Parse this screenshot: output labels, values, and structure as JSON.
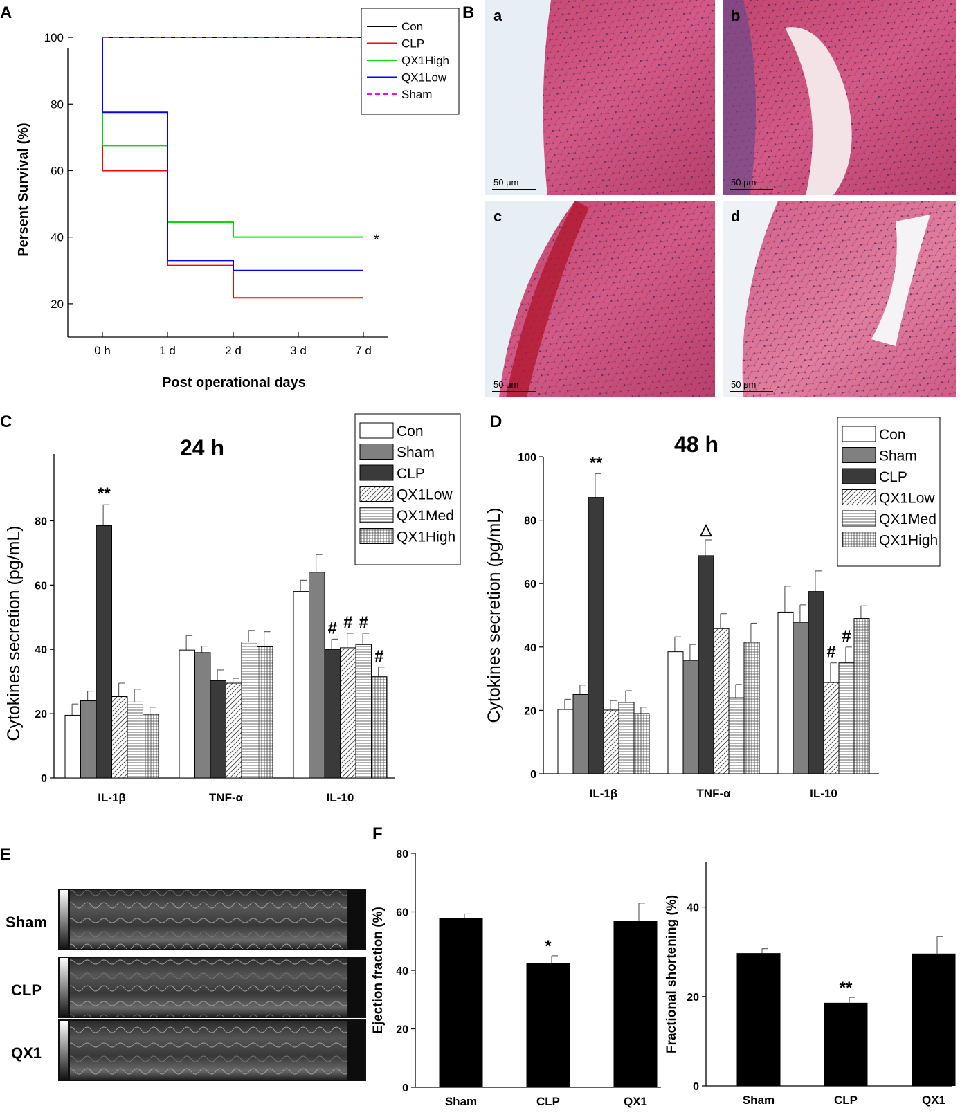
{
  "panel_labels": {
    "A": "A",
    "B": "B",
    "C": "C",
    "D": "D",
    "E": "E",
    "F": "F"
  },
  "chart_data": [
    {
      "id": "A",
      "type": "line",
      "step": true,
      "xlabel": "Post operational days",
      "ylabel": "Persent Survival (%)",
      "categories": [
        "0 h",
        "1 d",
        "2 d",
        "3 d",
        "7 d"
      ],
      "yticks": [
        20,
        40,
        60,
        80,
        100
      ],
      "ylim": [
        10,
        105
      ],
      "legend": {
        "position": "top-right"
      },
      "series": [
        {
          "name": "Con",
          "color": "#000000",
          "dash": false,
          "values": [
            100,
            100,
            100,
            100,
            100
          ]
        },
        {
          "name": "CLP",
          "color": "#ff0000",
          "dash": false,
          "values": [
            60,
            31.5,
            21.8,
            21.8,
            21.8
          ]
        },
        {
          "name": "QX1High",
          "color": "#00dd00",
          "dash": false,
          "values": [
            67.5,
            44.5,
            40,
            40,
            40
          ]
        },
        {
          "name": "QX1Low",
          "color": "#0000ff",
          "dash": false,
          "values": [
            77.5,
            33,
            30,
            30,
            30
          ]
        },
        {
          "name": "Sham",
          "color": "#ff00ff",
          "dash": true,
          "values": [
            100,
            100,
            100,
            100,
            100
          ]
        }
      ],
      "annotations": [
        {
          "text": "*",
          "series": "QX1High"
        }
      ]
    },
    {
      "id": "C",
      "type": "bar",
      "title": "24 h",
      "ylabel": "Cytokines secretion (pg/mL)",
      "categories": [
        "IL-1β",
        "TNF-α",
        "IL-10"
      ],
      "yticks": [
        0,
        20,
        40,
        60,
        80
      ],
      "ylim": [
        0,
        90
      ],
      "legend": {
        "position": "top-right"
      },
      "series": [
        {
          "name": "Con",
          "pattern": "white",
          "values": [
            19.5,
            39.8,
            58
          ],
          "errors": [
            3.5,
            4.5,
            3.5
          ]
        },
        {
          "name": "Sham",
          "pattern": "gray",
          "values": [
            24,
            39,
            64
          ],
          "errors": [
            3,
            2,
            5.5
          ]
        },
        {
          "name": "CLP",
          "pattern": "dark",
          "values": [
            78.5,
            30.3,
            40
          ],
          "errors": [
            6.5,
            3.3,
            3.2
          ]
        },
        {
          "name": "QX1Low",
          "pattern": "diag",
          "values": [
            25.3,
            29.5,
            40.5
          ],
          "errors": [
            4.2,
            1.5,
            4.5
          ]
        },
        {
          "name": "QX1Med",
          "pattern": "hlines",
          "values": [
            23.6,
            42.3,
            41.5
          ],
          "errors": [
            4,
            3.6,
            3.5
          ]
        },
        {
          "name": "QX1High",
          "pattern": "grid",
          "values": [
            19.8,
            40.8,
            31.5
          ],
          "errors": [
            2.2,
            4.7,
            3
          ]
        }
      ],
      "marks": [
        {
          "text": "**",
          "category": 0,
          "series": 2
        },
        {
          "text": "#",
          "category": 2,
          "series": 2
        },
        {
          "text": "#",
          "category": 2,
          "series": 3
        },
        {
          "text": "#",
          "category": 2,
          "series": 4
        },
        {
          "text": "#",
          "category": 2,
          "series": 5
        }
      ]
    },
    {
      "id": "D",
      "type": "bar",
      "title": "48 h",
      "ylabel": "Cytokines secretion (pg/mL)",
      "categories": [
        "IL-1β",
        "TNF-α",
        "IL-10"
      ],
      "yticks": [
        0,
        20,
        40,
        60,
        80,
        100
      ],
      "ylim": [
        0,
        100
      ],
      "legend": {
        "position": "top-right"
      },
      "series": [
        {
          "name": "Con",
          "pattern": "white",
          "values": [
            20.3,
            38.5,
            51
          ],
          "errors": [
            3.2,
            4.7,
            8.2
          ]
        },
        {
          "name": "Sham",
          "pattern": "gray",
          "values": [
            25,
            35.8,
            47.8
          ],
          "errors": [
            3,
            5,
            5.5
          ]
        },
        {
          "name": "CLP",
          "pattern": "dark",
          "values": [
            87.2,
            68.8,
            57.5
          ],
          "errors": [
            7.5,
            5,
            6.5
          ]
        },
        {
          "name": "QX1Low",
          "pattern": "diag",
          "values": [
            20.1,
            45.8,
            28.8
          ],
          "errors": [
            3,
            4.7,
            6.2
          ]
        },
        {
          "name": "QX1Med",
          "pattern": "hlines",
          "values": [
            22.5,
            24,
            35
          ],
          "errors": [
            3.7,
            4.2,
            5
          ]
        },
        {
          "name": "QX1High",
          "pattern": "grid",
          "values": [
            19,
            41.5,
            49
          ],
          "errors": [
            2,
            6,
            4
          ]
        }
      ],
      "marks": [
        {
          "text": "**",
          "category": 0,
          "series": 2
        },
        {
          "text": "△",
          "category": 1,
          "series": 2
        },
        {
          "text": "#",
          "category": 2,
          "series": 3
        },
        {
          "text": "#",
          "category": 2,
          "series": 4
        }
      ]
    },
    {
      "id": "F1",
      "type": "bar",
      "ylabel": "Ejection fraction (%)",
      "categories": [
        "Sham",
        "CLP",
        "QX1"
      ],
      "yticks": [
        0,
        20,
        40,
        60,
        80
      ],
      "ylim": [
        0,
        80
      ],
      "values": [
        57.8,
        42.5,
        57
      ],
      "errors": [
        1.5,
        2.5,
        6
      ],
      "marks": [
        {
          "text": "*",
          "index": 1
        }
      ]
    },
    {
      "id": "F2",
      "type": "bar",
      "ylabel": "Fractional shortening (%)",
      "categories": [
        "Sham",
        "CLP",
        "QX1"
      ],
      "yticks": [
        0,
        20,
        40
      ],
      "ylim": [
        0,
        50
      ],
      "values": [
        29.7,
        18.6,
        29.6
      ],
      "errors": [
        1,
        1.2,
        3.8
      ],
      "marks": [
        {
          "text": "**",
          "index": 1
        }
      ]
    }
  ],
  "histology": {
    "panels": [
      {
        "label": "a",
        "scale": "50 μm"
      },
      {
        "label": "b",
        "scale": "50 μm"
      },
      {
        "label": "c",
        "scale": "50 μm"
      },
      {
        "label": "d",
        "scale": "50 μm"
      }
    ]
  },
  "echo": {
    "rows": [
      {
        "label": "Sham"
      },
      {
        "label": "CLP"
      },
      {
        "label": "QX1"
      }
    ]
  }
}
